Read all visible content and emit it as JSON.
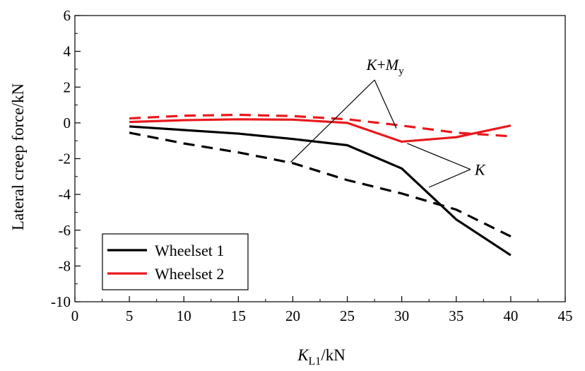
{
  "chart_data": {
    "type": "line",
    "xlabel": {
      "base": "K",
      "sub": "L1",
      "unit": "/kN"
    },
    "ylabel": "Lateral creep force/kN",
    "xlim": [
      0,
      45
    ],
    "ylim": [
      -10,
      6
    ],
    "x_ticks": [
      0,
      5,
      10,
      15,
      20,
      25,
      30,
      35,
      40,
      45
    ],
    "y_ticks": [
      6,
      4,
      2,
      0,
      -2,
      -4,
      -6,
      -8,
      -10
    ],
    "grid": false,
    "legend": {
      "position": "bottom-left"
    },
    "series": [
      {
        "name": "Wheelset 1",
        "model": "K",
        "color": "#000000",
        "dash": "solid",
        "x": [
          5,
          10,
          15,
          20,
          25,
          30,
          35,
          40
        ],
        "y": [
          -0.2,
          -0.4,
          -0.6,
          -0.9,
          -1.25,
          -2.55,
          -5.4,
          -7.4
        ]
      },
      {
        "name": "Wheelset 1",
        "model": "K+My",
        "color": "#000000",
        "dash": "dashed",
        "x": [
          5,
          10,
          15,
          20,
          25,
          30,
          35,
          40
        ],
        "y": [
          -0.55,
          -1.15,
          -1.65,
          -2.25,
          -3.2,
          -3.95,
          -4.85,
          -6.35
        ]
      },
      {
        "name": "Wheelset 2",
        "model": "K",
        "color": "#e8191d",
        "dash": "solid",
        "x": [
          5,
          10,
          15,
          20,
          25,
          30,
          35,
          40
        ],
        "y": [
          0.05,
          0.15,
          0.2,
          0.18,
          0.0,
          -1.05,
          -0.8,
          -0.15
        ]
      },
      {
        "name": "Wheelset 2",
        "model": "K+My",
        "color": "#e8191d",
        "dash": "dashed",
        "x": [
          5,
          10,
          15,
          20,
          25,
          30,
          35,
          40
        ],
        "y": [
          0.25,
          0.4,
          0.45,
          0.38,
          0.2,
          -0.15,
          -0.55,
          -0.75
        ]
      }
    ],
    "legend_entries": [
      {
        "label": "Wheelset 1",
        "color": "#000000"
      },
      {
        "label": "Wheelset 2",
        "color": "#e8191d"
      }
    ],
    "annotations": [
      {
        "id": "kmy",
        "text_base": "K",
        "text_plus": "+",
        "text_m": "M",
        "text_sub": "y",
        "anchor": [
          27.5,
          2.4
        ],
        "targets": [
          [
            19.8,
            -2.2
          ],
          [
            29.5,
            -0.3
          ]
        ]
      },
      {
        "id": "k",
        "text_base": "K",
        "anchor": [
          36.3,
          -2.6
        ],
        "targets": [
          [
            30.5,
            -1.15
          ],
          [
            32.5,
            -3.6
          ]
        ]
      }
    ]
  }
}
